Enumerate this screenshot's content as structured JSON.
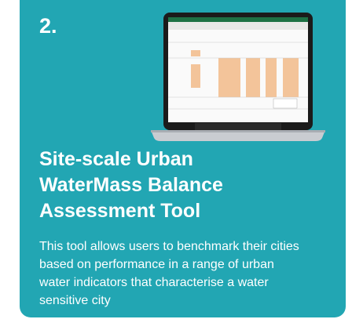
{
  "card": {
    "number": "2.",
    "title": "Site-scale Urban WaterMass Balance Assessment Tool",
    "description": "This tool allows users to benchmark their cities based on performance in a range of urban water indicators that characterise a water sensitive city"
  }
}
